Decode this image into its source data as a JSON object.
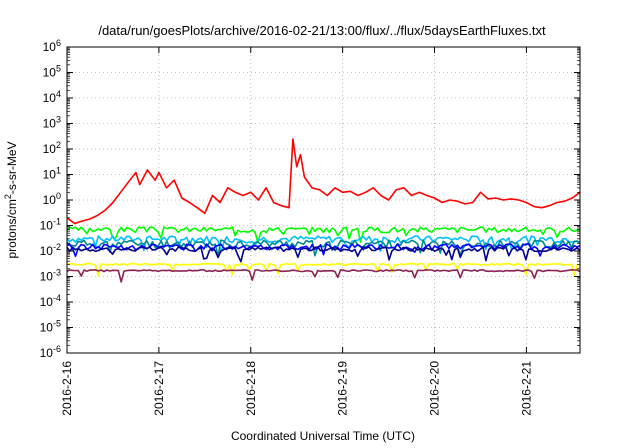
{
  "chart_data": {
    "type": "line",
    "title": "/data/run/goesPlots/archive/2016-02-21/13:00/flux/../flux/5daysEarthFluxes.txt",
    "xlabel": "Coordinated Universal Time (UTC)",
    "ylabel": "protons/cm2-s-sr-MeV",
    "ylabel_parts": {
      "prefix": "protons/cm",
      "sup": "2",
      "suffix": "-s-sr-MeV"
    },
    "yscale": "log",
    "ylim": [
      1e-06,
      1000000.0
    ],
    "xlim": [
      "2016-02-16 00:00",
      "2016-02-21 14:00"
    ],
    "grid": true,
    "legend": "none",
    "x_ticks": [
      "2016-2-16",
      "2016-2-17",
      "2016-2-18",
      "2016-2-19",
      "2016-2-20",
      "2016-2-21"
    ],
    "y_ticks": [
      {
        "base": "10",
        "exp": "-6"
      },
      {
        "base": "10",
        "exp": "-5"
      },
      {
        "base": "10",
        "exp": "-4"
      },
      {
        "base": "10",
        "exp": "-3"
      },
      {
        "base": "10",
        "exp": "-2"
      },
      {
        "base": "10",
        "exp": "-1"
      },
      {
        "base": "10",
        "exp": "0"
      },
      {
        "base": "10",
        "exp": "1"
      },
      {
        "base": "10",
        "exp": "2"
      },
      {
        "base": "10",
        "exp": "3"
      },
      {
        "base": "10",
        "exp": "4"
      },
      {
        "base": "10",
        "exp": "5"
      },
      {
        "base": "10",
        "exp": "6"
      }
    ],
    "series": [
      {
        "color": "#ff0000",
        "points": [
          [
            "2016-02-16 00:00",
            0.2
          ],
          [
            "2016-02-16 02:00",
            0.12
          ],
          [
            "2016-02-16 04:00",
            0.15
          ],
          [
            "2016-02-16 06:00",
            0.18
          ],
          [
            "2016-02-16 08:00",
            0.25
          ],
          [
            "2016-02-16 10:00",
            0.4
          ],
          [
            "2016-02-16 12:00",
            0.8
          ],
          [
            "2016-02-16 14:00",
            2.0
          ],
          [
            "2016-02-16 16:00",
            5.0
          ],
          [
            "2016-02-16 18:00",
            12.0
          ],
          [
            "2016-02-16 19:00",
            4.0
          ],
          [
            "2016-02-16 21:00",
            15.0
          ],
          [
            "2016-02-16 23:00",
            6.0
          ],
          [
            "2016-02-17 00:00",
            12.0
          ],
          [
            "2016-02-17 02:00",
            3.0
          ],
          [
            "2016-02-17 04:00",
            6.0
          ],
          [
            "2016-02-17 06:00",
            1.2
          ],
          [
            "2016-02-17 08:00",
            0.8
          ],
          [
            "2016-02-17 10:00",
            0.5
          ],
          [
            "2016-02-17 12:00",
            0.3
          ],
          [
            "2016-02-17 14:00",
            1.5
          ],
          [
            "2016-02-17 16:00",
            0.8
          ],
          [
            "2016-02-17 18:00",
            3.0
          ],
          [
            "2016-02-17 20:00",
            2.0
          ],
          [
            "2016-02-17 22:00",
            1.5
          ],
          [
            "2016-02-18 00:00",
            2.0
          ],
          [
            "2016-02-18 02:00",
            1.0
          ],
          [
            "2016-02-18 04:00",
            3.0
          ],
          [
            "2016-02-18 06:00",
            0.8
          ],
          [
            "2016-02-18 08:00",
            0.6
          ],
          [
            "2016-02-18 10:00",
            0.5
          ],
          [
            "2016-02-18 11:00",
            250.0
          ],
          [
            "2016-02-18 12:00",
            20.0
          ],
          [
            "2016-02-18 13:00",
            60.0
          ],
          [
            "2016-02-18 14:00",
            8.0
          ],
          [
            "2016-02-18 16:00",
            3.0
          ],
          [
            "2016-02-18 18:00",
            2.5
          ],
          [
            "2016-02-18 20:00",
            1.5
          ],
          [
            "2016-02-18 22:00",
            3.0
          ],
          [
            "2016-02-19 00:00",
            2.0
          ],
          [
            "2016-02-19 02:00",
            2.2
          ],
          [
            "2016-02-19 04:00",
            1.5
          ],
          [
            "2016-02-19 06:00",
            2.0
          ],
          [
            "2016-02-19 08:00",
            3.0
          ],
          [
            "2016-02-19 10:00",
            1.5
          ],
          [
            "2016-02-19 12:00",
            1.0
          ],
          [
            "2016-02-19 14:00",
            2.5
          ],
          [
            "2016-02-19 16:00",
            3.0
          ],
          [
            "2016-02-19 18:00",
            1.5
          ],
          [
            "2016-02-19 20:00",
            2.0
          ],
          [
            "2016-02-19 22:00",
            1.5
          ],
          [
            "2016-02-20 00:00",
            1.2
          ],
          [
            "2016-02-20 02:00",
            0.8
          ],
          [
            "2016-02-20 04:00",
            1.0
          ],
          [
            "2016-02-20 06:00",
            0.9
          ],
          [
            "2016-02-20 08:00",
            0.7
          ],
          [
            "2016-02-20 10:00",
            0.8
          ],
          [
            "2016-02-20 12:00",
            2.0
          ],
          [
            "2016-02-20 14:00",
            1.1
          ],
          [
            "2016-02-20 16:00",
            1.2
          ],
          [
            "2016-02-20 18:00",
            1.0
          ],
          [
            "2016-02-20 20:00",
            1.1
          ],
          [
            "2016-02-20 22:00",
            1.0
          ],
          [
            "2016-02-21 00:00",
            0.8
          ],
          [
            "2016-02-21 02:00",
            0.55
          ],
          [
            "2016-02-21 04:00",
            0.5
          ],
          [
            "2016-02-21 06:00",
            0.6
          ],
          [
            "2016-02-21 08:00",
            0.8
          ],
          [
            "2016-02-21 10:00",
            0.9
          ],
          [
            "2016-02-21 12:00",
            1.2
          ],
          [
            "2016-02-21 14:00",
            2.0
          ]
        ]
      },
      {
        "color": "#00ff00",
        "base": 0.07,
        "amp": 0.25,
        "seed": 3
      },
      {
        "color": "#00bfff",
        "base": 0.03,
        "amp": 0.3,
        "seed": 7
      },
      {
        "color": "#008b8b",
        "base": 0.02,
        "amp": 0.35,
        "seed": 11
      },
      {
        "color": "#0000ff",
        "base": 0.015,
        "amp": 0.25,
        "seed": 13
      },
      {
        "color": "#00008b",
        "base": 0.012,
        "amp": 0.2,
        "seed": 17
      },
      {
        "color": "#ffff00",
        "base": 0.003,
        "amp": 0.08,
        "seed": 19
      },
      {
        "color": "#8b2252",
        "base": 0.0017,
        "amp": 0.08,
        "seed": 23
      }
    ]
  }
}
